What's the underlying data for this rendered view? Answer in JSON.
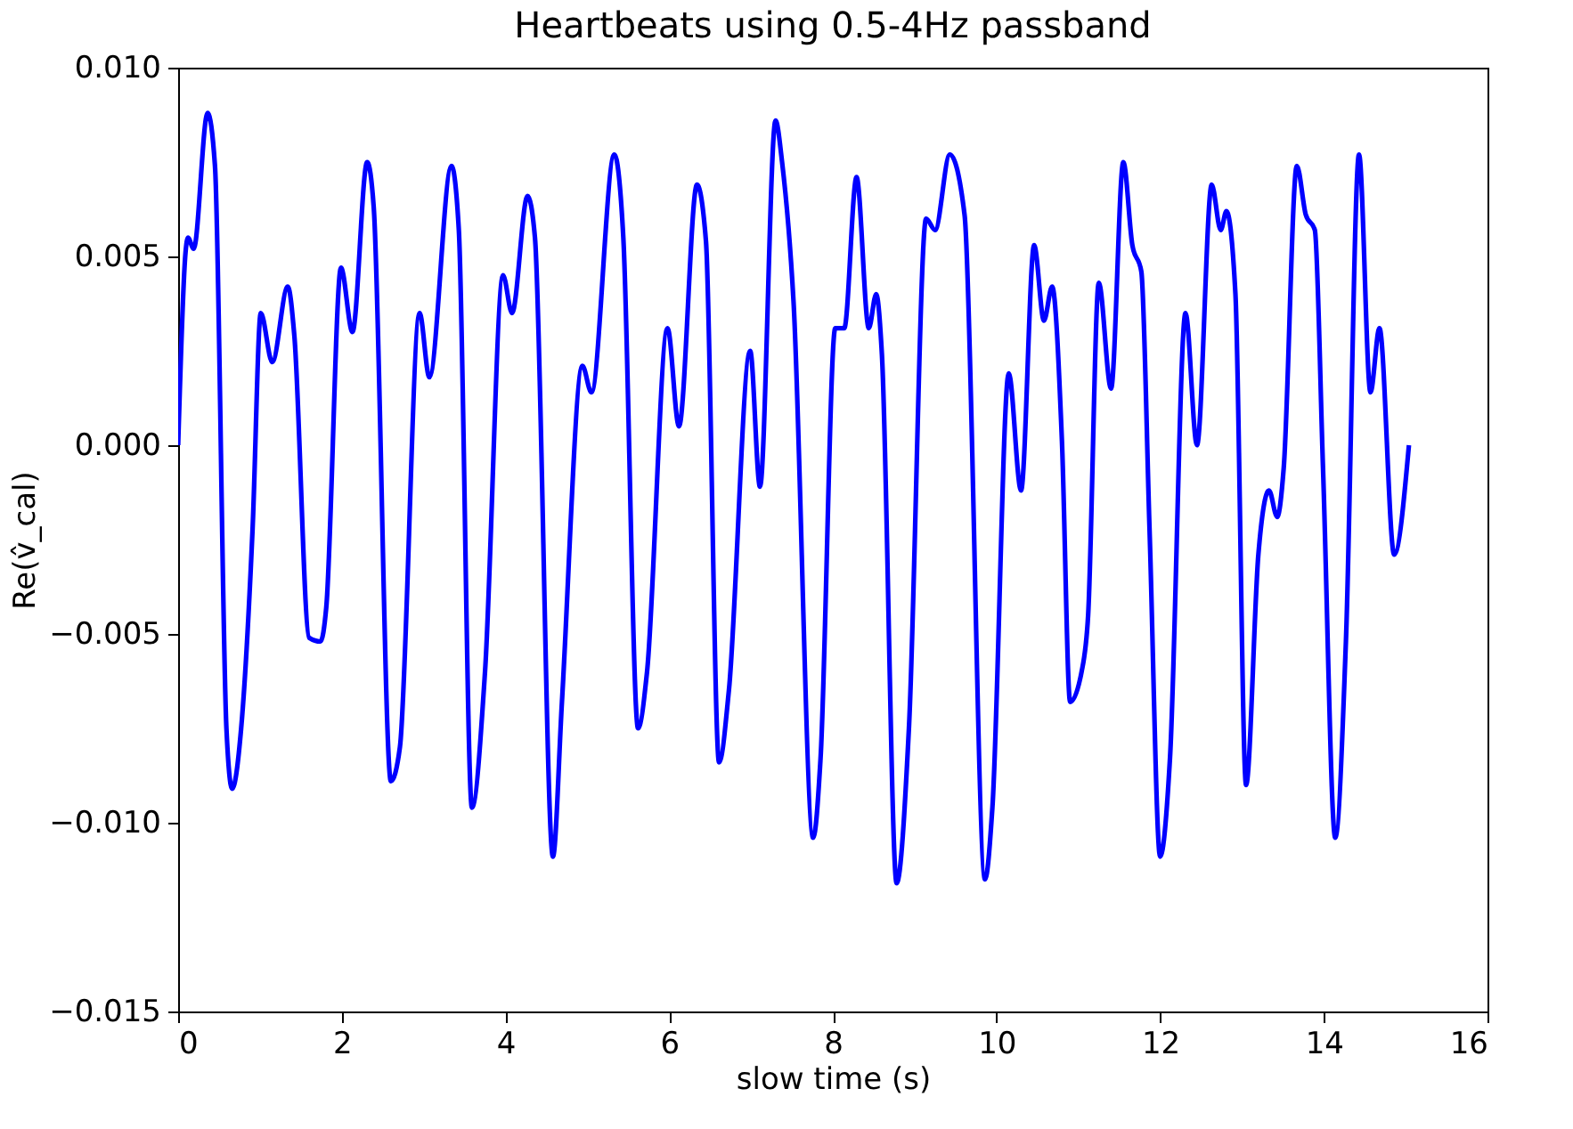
{
  "chart_data": {
    "type": "line",
    "title": "Heartbeats using 0.5-4Hz passband",
    "xlabel": "slow time (s)",
    "ylabel": "Re(v̂_cal)",
    "xlim": [
      0,
      16
    ],
    "xticks": [
      0,
      2,
      4,
      6,
      8,
      10,
      12,
      14,
      16
    ],
    "ylim": [
      -0.015,
      0.01
    ],
    "yticks": [
      {
        "value": -0.015,
        "label": "−0.015"
      },
      {
        "value": -0.01,
        "label": "−0.010"
      },
      {
        "value": -0.005,
        "label": "−0.005"
      },
      {
        "value": 0,
        "label": "0.000"
      },
      {
        "value": 0.005,
        "label": "0.005"
      },
      {
        "value": 0.01,
        "label": "0.010"
      }
    ],
    "grid": false,
    "marker": "none",
    "line_style": "solid",
    "series": [
      {
        "color": "#0000ff",
        "x": [
          0.0,
          0.09,
          0.12,
          0.19,
          0.36,
          0.45,
          0.59,
          0.66,
          0.77,
          0.91,
          1.01,
          1.15,
          1.34,
          1.42,
          1.6,
          1.74,
          1.81,
          1.99,
          2.13,
          2.31,
          2.39,
          2.6,
          2.71,
          2.95,
          3.07,
          3.34,
          3.43,
          3.59,
          3.75,
          3.97,
          4.08,
          4.27,
          4.36,
          4.58,
          4.69,
          4.94,
          5.05,
          5.33,
          5.44,
          5.62,
          5.73,
          5.98,
          6.12,
          6.34,
          6.45,
          6.61,
          6.73,
          6.99,
          7.11,
          7.3,
          7.38,
          7.52,
          7.76,
          7.85,
          8.03,
          8.14,
          8.29,
          8.44,
          8.53,
          8.6,
          8.78,
          8.93,
          9.14,
          9.25,
          9.43,
          9.61,
          9.86,
          9.95,
          10.15,
          10.3,
          10.46,
          10.58,
          10.68,
          10.8,
          10.9,
          11.04,
          11.12,
          11.25,
          11.4,
          11.55,
          11.66,
          11.77,
          11.87,
          12.0,
          12.12,
          12.31,
          12.45,
          12.63,
          12.74,
          12.81,
          12.92,
          13.05,
          13.2,
          13.33,
          13.43,
          13.51,
          13.67,
          13.78,
          13.89,
          13.99,
          14.14,
          14.27,
          14.43,
          14.57,
          14.68,
          14.86,
          15.04
        ],
        "values": [
          0.0,
          0.0051,
          0.0055,
          0.0052,
          0.0088,
          0.0074,
          -0.0075,
          -0.0091,
          -0.0075,
          -0.0022,
          0.0035,
          0.0022,
          0.0042,
          0.0029,
          -0.0051,
          -0.0052,
          -0.0043,
          0.0047,
          0.003,
          0.0075,
          0.0063,
          -0.0089,
          -0.008,
          0.0035,
          0.0018,
          0.0074,
          0.0057,
          -0.0096,
          -0.006,
          0.0045,
          0.0035,
          0.0066,
          0.0055,
          -0.0109,
          -0.0068,
          0.0021,
          0.0014,
          0.0077,
          0.0055,
          -0.0075,
          -0.006,
          0.0031,
          0.0005,
          0.0069,
          0.0054,
          -0.0084,
          -0.0065,
          0.0025,
          -0.0011,
          0.0086,
          0.0075,
          0.0038,
          -0.0104,
          -0.0083,
          0.0031,
          0.0031,
          0.0071,
          0.0031,
          0.004,
          0.0024,
          -0.0116,
          -0.0075,
          0.006,
          0.0057,
          0.0077,
          0.0061,
          -0.0115,
          -0.0096,
          0.0019,
          -0.0012,
          0.0053,
          0.0033,
          0.0042,
          0.0001,
          -0.0068,
          -0.006,
          -0.0045,
          0.0043,
          0.0015,
          0.0075,
          0.0053,
          0.0046,
          -0.0022,
          -0.0109,
          -0.0083,
          0.0035,
          0.0,
          0.0069,
          0.0057,
          0.0062,
          0.004,
          -0.009,
          -0.0029,
          -0.0012,
          -0.0019,
          -0.0006,
          0.0074,
          0.0061,
          0.0057,
          -0.0006,
          -0.0104,
          -0.0052,
          0.0077,
          0.0014,
          0.0031,
          -0.0029,
          0.0
        ]
      }
    ]
  }
}
